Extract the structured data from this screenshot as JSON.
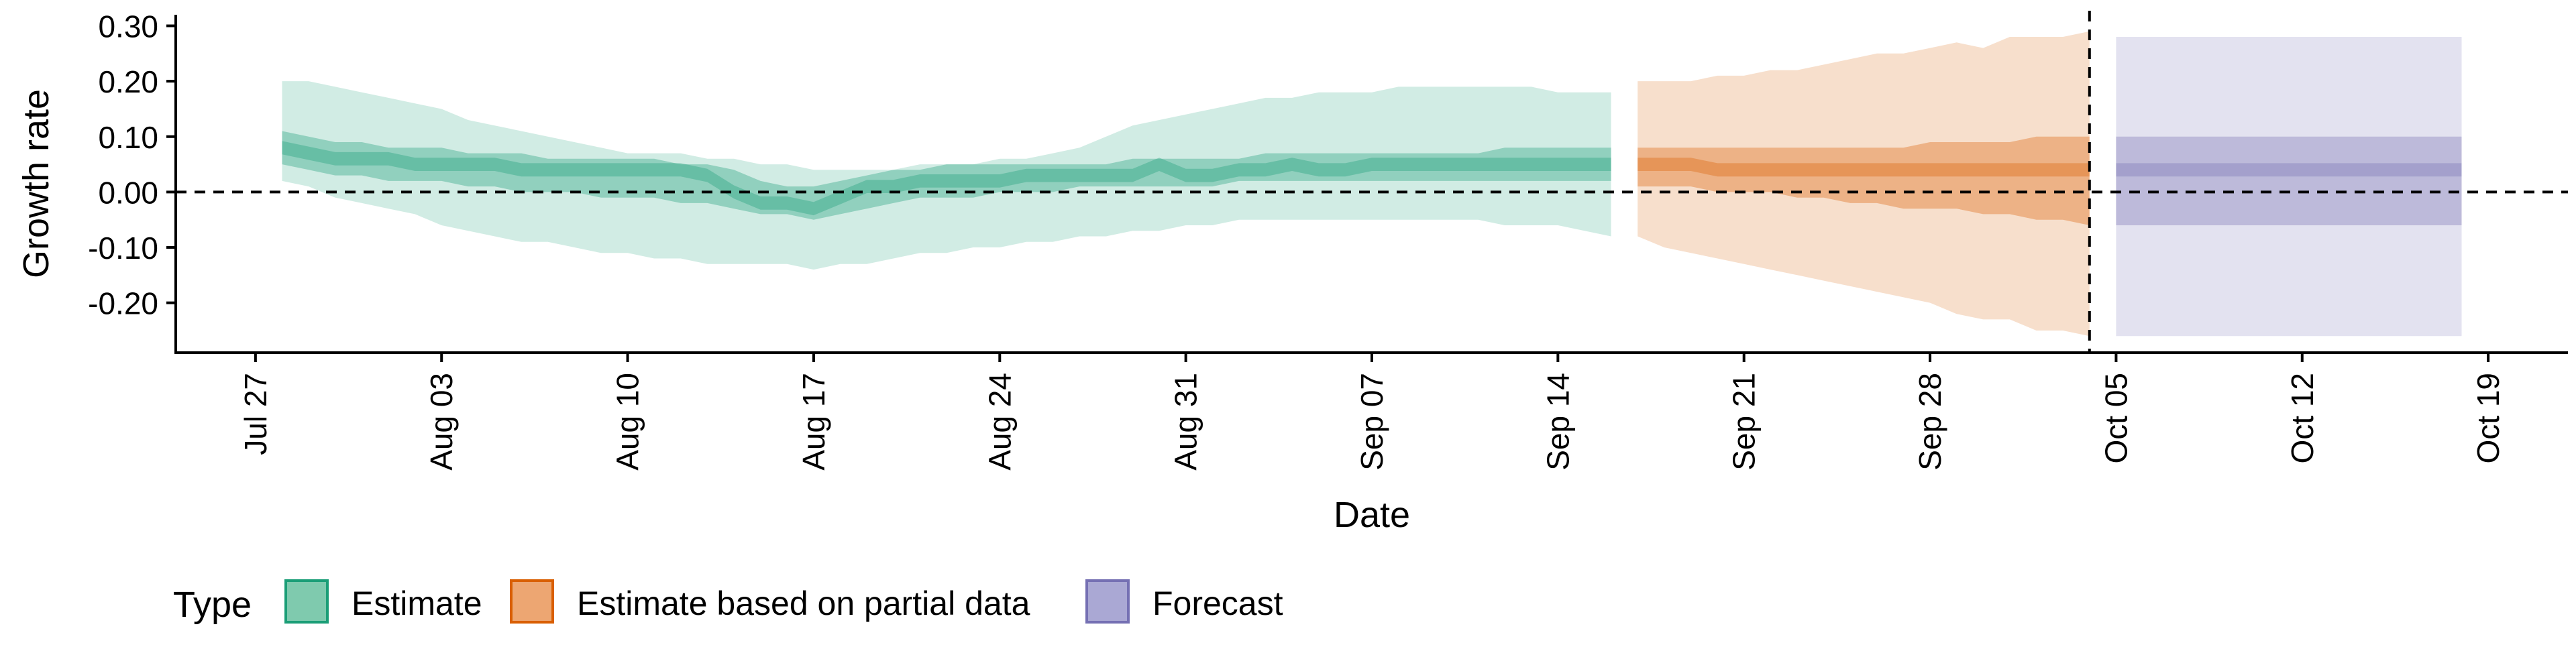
{
  "chart_data": {
    "type": "area",
    "title": "",
    "xlabel": "Date",
    "ylabel": "Growth rate",
    "x_tick_labels": [
      "Jul 27",
      "Aug 03",
      "Aug 10",
      "Aug 17",
      "Aug 24",
      "Aug 31",
      "Sep 07",
      "Sep 14",
      "Sep 21",
      "Sep 28",
      "Oct 05",
      "Oct 12",
      "Oct 19"
    ],
    "x_tick_dates": [
      "2020-07-27",
      "2020-08-03",
      "2020-08-10",
      "2020-08-17",
      "2020-08-24",
      "2020-08-31",
      "2020-09-07",
      "2020-09-14",
      "2020-09-21",
      "2020-09-28",
      "2020-10-05",
      "2020-10-12",
      "2020-10-19"
    ],
    "xlim": [
      "2020-07-24",
      "2020-10-22"
    ],
    "y_tick_labels": [
      "0.30",
      "0.20",
      "0.10",
      "0.00",
      "-0.10",
      "-0.20"
    ],
    "y_ticks": [
      0.3,
      0.2,
      0.1,
      0.0,
      -0.1,
      -0.2
    ],
    "ylim": [
      -0.29,
      0.32
    ],
    "hline_y": 0,
    "vline_x": "2020-10-04",
    "grid": false,
    "legend": {
      "title": "Type",
      "position": "bottom-left",
      "entries": [
        {
          "label": "Estimate",
          "fill": "#7fcaae",
          "stroke": "#1b9e77"
        },
        {
          "label": "Estimate based on partial data",
          "fill": "#eda672",
          "stroke": "#d95f02"
        },
        {
          "label": "Forecast",
          "fill": "#aaa8d4",
          "stroke": "#7570b3"
        }
      ]
    },
    "series": [
      {
        "name": "Estimate",
        "color": "#1b9e77",
        "x": [
          "2020-07-28",
          "2020-07-29",
          "2020-07-30",
          "2020-07-31",
          "2020-08-01",
          "2020-08-02",
          "2020-08-03",
          "2020-08-04",
          "2020-08-05",
          "2020-08-06",
          "2020-08-07",
          "2020-08-08",
          "2020-08-09",
          "2020-08-10",
          "2020-08-11",
          "2020-08-12",
          "2020-08-13",
          "2020-08-14",
          "2020-08-15",
          "2020-08-16",
          "2020-08-17",
          "2020-08-18",
          "2020-08-19",
          "2020-08-20",
          "2020-08-21",
          "2020-08-22",
          "2020-08-23",
          "2020-08-24",
          "2020-08-25",
          "2020-08-26",
          "2020-08-27",
          "2020-08-28",
          "2020-08-29",
          "2020-08-30",
          "2020-08-31",
          "2020-09-01",
          "2020-09-02",
          "2020-09-03",
          "2020-09-04",
          "2020-09-05",
          "2020-09-06",
          "2020-09-07",
          "2020-09-08",
          "2020-09-09",
          "2020-09-10",
          "2020-09-11",
          "2020-09-12",
          "2020-09-13",
          "2020-09-14",
          "2020-09-15",
          "2020-09-16"
        ],
        "lower90": [
          0.02,
          0.01,
          -0.01,
          -0.02,
          -0.03,
          -0.04,
          -0.06,
          -0.07,
          -0.08,
          -0.09,
          -0.09,
          -0.1,
          -0.11,
          -0.11,
          -0.12,
          -0.12,
          -0.13,
          -0.13,
          -0.13,
          -0.13,
          -0.14,
          -0.13,
          -0.13,
          -0.12,
          -0.11,
          -0.11,
          -0.1,
          -0.1,
          -0.09,
          -0.09,
          -0.08,
          -0.08,
          -0.07,
          -0.07,
          -0.06,
          -0.06,
          -0.05,
          -0.05,
          -0.05,
          -0.05,
          -0.05,
          -0.05,
          -0.05,
          -0.05,
          -0.05,
          -0.05,
          -0.06,
          -0.06,
          -0.06,
          -0.07,
          -0.08
        ],
        "lower50": [
          0.05,
          0.04,
          0.03,
          0.03,
          0.02,
          0.02,
          0.02,
          0.01,
          0.01,
          0.0,
          0.0,
          0.0,
          -0.01,
          -0.01,
          -0.01,
          -0.02,
          -0.02,
          -0.03,
          -0.04,
          -0.04,
          -0.05,
          -0.04,
          -0.03,
          -0.02,
          -0.01,
          -0.01,
          -0.01,
          0.0,
          0.0,
          0.0,
          0.01,
          0.01,
          0.01,
          0.01,
          0.01,
          0.01,
          0.02,
          0.02,
          0.02,
          0.02,
          0.02,
          0.02,
          0.02,
          0.02,
          0.02,
          0.02,
          0.02,
          0.02,
          0.02,
          0.02,
          0.02
        ],
        "median": [
          0.08,
          0.07,
          0.06,
          0.06,
          0.06,
          0.05,
          0.05,
          0.05,
          0.05,
          0.04,
          0.04,
          0.04,
          0.04,
          0.04,
          0.04,
          0.04,
          0.03,
          0.0,
          -0.02,
          -0.02,
          -0.03,
          -0.01,
          0.01,
          0.01,
          0.02,
          0.02,
          0.02,
          0.02,
          0.03,
          0.03,
          0.03,
          0.03,
          0.03,
          0.05,
          0.03,
          0.03,
          0.04,
          0.04,
          0.05,
          0.04,
          0.04,
          0.05,
          0.05,
          0.05,
          0.05,
          0.05,
          0.05,
          0.05,
          0.05,
          0.05,
          0.05
        ],
        "upper50": [
          0.11,
          0.1,
          0.09,
          0.09,
          0.08,
          0.08,
          0.08,
          0.07,
          0.07,
          0.07,
          0.06,
          0.06,
          0.06,
          0.06,
          0.06,
          0.05,
          0.05,
          0.04,
          0.02,
          0.01,
          0.01,
          0.02,
          0.03,
          0.04,
          0.04,
          0.05,
          0.05,
          0.05,
          0.05,
          0.05,
          0.05,
          0.05,
          0.06,
          0.06,
          0.06,
          0.06,
          0.06,
          0.07,
          0.07,
          0.07,
          0.07,
          0.07,
          0.07,
          0.07,
          0.07,
          0.07,
          0.08,
          0.08,
          0.08,
          0.08,
          0.08
        ],
        "upper90": [
          0.2,
          0.2,
          0.19,
          0.18,
          0.17,
          0.16,
          0.15,
          0.13,
          0.12,
          0.11,
          0.1,
          0.09,
          0.08,
          0.07,
          0.07,
          0.07,
          0.06,
          0.06,
          0.05,
          0.05,
          0.04,
          0.04,
          0.04,
          0.04,
          0.05,
          0.05,
          0.05,
          0.06,
          0.06,
          0.07,
          0.08,
          0.1,
          0.12,
          0.13,
          0.14,
          0.15,
          0.16,
          0.17,
          0.17,
          0.18,
          0.18,
          0.18,
          0.19,
          0.19,
          0.19,
          0.19,
          0.19,
          0.19,
          0.18,
          0.18,
          0.18
        ]
      },
      {
        "name": "Estimate based on partial data",
        "color": "#d95f02",
        "x": [
          "2020-09-17",
          "2020-09-18",
          "2020-09-19",
          "2020-09-20",
          "2020-09-21",
          "2020-09-22",
          "2020-09-23",
          "2020-09-24",
          "2020-09-25",
          "2020-09-26",
          "2020-09-27",
          "2020-09-28",
          "2020-09-29",
          "2020-09-30",
          "2020-10-01",
          "2020-10-02",
          "2020-10-03",
          "2020-10-04"
        ],
        "lower90": [
          -0.08,
          -0.1,
          -0.11,
          -0.12,
          -0.13,
          -0.14,
          -0.15,
          -0.16,
          -0.17,
          -0.18,
          -0.19,
          -0.2,
          -0.22,
          -0.23,
          -0.23,
          -0.25,
          -0.25,
          -0.26
        ],
        "lower50": [
          0.01,
          0.01,
          0.01,
          0.0,
          0.0,
          0.0,
          -0.01,
          -0.01,
          -0.02,
          -0.02,
          -0.03,
          -0.03,
          -0.03,
          -0.04,
          -0.04,
          -0.05,
          -0.05,
          -0.06
        ],
        "median": [
          0.05,
          0.05,
          0.05,
          0.04,
          0.04,
          0.04,
          0.04,
          0.04,
          0.04,
          0.04,
          0.04,
          0.04,
          0.04,
          0.04,
          0.04,
          0.04,
          0.04,
          0.04
        ],
        "upper50": [
          0.08,
          0.08,
          0.08,
          0.08,
          0.08,
          0.08,
          0.08,
          0.08,
          0.08,
          0.08,
          0.08,
          0.09,
          0.09,
          0.09,
          0.09,
          0.1,
          0.1,
          0.1
        ],
        "upper90": [
          0.2,
          0.2,
          0.2,
          0.21,
          0.21,
          0.22,
          0.22,
          0.23,
          0.24,
          0.25,
          0.25,
          0.26,
          0.27,
          0.26,
          0.28,
          0.28,
          0.28,
          0.29
        ]
      },
      {
        "name": "Forecast",
        "color": "#7570b3",
        "x": [
          "2020-10-05",
          "2020-10-18"
        ],
        "lower90": [
          -0.26,
          -0.26
        ],
        "lower50": [
          -0.06,
          -0.06
        ],
        "median": [
          0.04,
          0.04
        ],
        "upper50": [
          0.1,
          0.1
        ],
        "upper90": [
          0.28,
          0.28
        ]
      }
    ]
  }
}
